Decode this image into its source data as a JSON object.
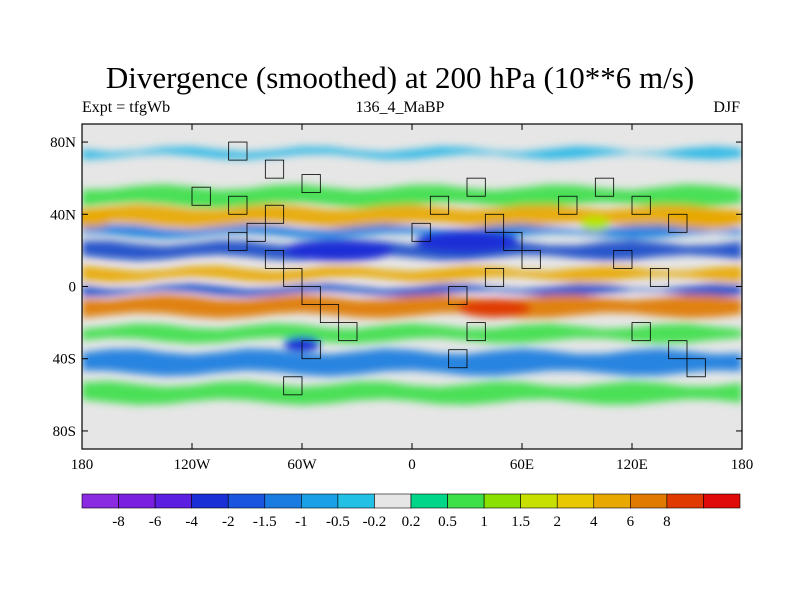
{
  "title": "Divergence (smoothed) at 200 hPa (10**6 m/s)",
  "expt_label": "Expt = tfgWb",
  "case_label": "136_4_MaBP",
  "season_label": "DJF",
  "map": {
    "projection": "cylindrical-equidistant",
    "lon_range": [
      -180,
      180
    ],
    "lat_range": [
      -90,
      90
    ],
    "lat_ticks": [
      {
        "value": 80,
        "label": "80N"
      },
      {
        "value": 40,
        "label": "40N"
      },
      {
        "value": 0,
        "label": "0"
      },
      {
        "value": -40,
        "label": "40S"
      },
      {
        "value": -80,
        "label": "80S"
      }
    ],
    "lon_ticks": [
      {
        "value": -180,
        "label": "180"
      },
      {
        "value": -120,
        "label": "120W"
      },
      {
        "value": -60,
        "label": "60W"
      },
      {
        "value": 0,
        "label": "0"
      },
      {
        "value": 60,
        "label": "60E"
      },
      {
        "value": 120,
        "label": "120E"
      },
      {
        "value": 180,
        "label": "180"
      }
    ],
    "bands": [
      {
        "lat": [
          72,
          76
        ],
        "color": "#23b6e6"
      },
      {
        "lat": [
          45,
          55
        ],
        "color": "#3ee04a"
      },
      {
        "lat": [
          34,
          44
        ],
        "color": "#e8a800"
      },
      {
        "lat": [
          28,
          33
        ],
        "color": "#1a7ce0"
      },
      {
        "lat": [
          16,
          24
        ],
        "color": "#1649c9"
      },
      {
        "lat": [
          4,
          10
        ],
        "color": "#e8a800"
      },
      {
        "lat": [
          -4,
          0
        ],
        "color": "#1649c9"
      },
      {
        "lat": [
          -16,
          -6
        ],
        "color": "#e07a00"
      },
      {
        "lat": [
          -30,
          -22
        ],
        "color": "#3ee04a"
      },
      {
        "lat": [
          -48,
          -36
        ],
        "color": "#1a7ce0"
      },
      {
        "lat": [
          -64,
          -54
        ],
        "color": "#3ee04a"
      }
    ],
    "blobs": [
      {
        "lon": -40,
        "lat": 20,
        "rlon": 30,
        "rlat": 6,
        "color": "#1a2fd6"
      },
      {
        "lon": 30,
        "lat": 25,
        "rlon": 28,
        "rlat": 6,
        "color": "#1a2fd6"
      },
      {
        "lon": 45,
        "lat": -12,
        "rlon": 20,
        "rlat": 5,
        "color": "#e03a00"
      },
      {
        "lon": 160,
        "lat": 37,
        "rlon": 22,
        "rlat": 5,
        "color": "#e8a800"
      },
      {
        "lon": -175,
        "lat": 38,
        "rlon": 12,
        "rlat": 5,
        "color": "#e8a800"
      },
      {
        "lon": -60,
        "lat": -32,
        "rlon": 10,
        "rlat": 4,
        "color": "#1a2fd6"
      },
      {
        "lon": 100,
        "lat": 35,
        "rlon": 8,
        "rlat": 4,
        "color": "#b4e600"
      }
    ],
    "coast_cells": [
      [
        -100,
        80
      ],
      [
        -80,
        70
      ],
      [
        -60,
        62
      ],
      [
        -120,
        55
      ],
      [
        -100,
        50
      ],
      [
        -80,
        45
      ],
      [
        -90,
        35
      ],
      [
        -100,
        30
      ],
      [
        -80,
        20
      ],
      [
        -70,
        10
      ],
      [
        -60,
        0
      ],
      [
        -50,
        -10
      ],
      [
        -40,
        -20
      ],
      [
        -60,
        -30
      ],
      [
        -70,
        -50
      ],
      [
        0,
        35
      ],
      [
        10,
        50
      ],
      [
        30,
        60
      ],
      [
        40,
        40
      ],
      [
        50,
        30
      ],
      [
        60,
        20
      ],
      [
        40,
        10
      ],
      [
        20,
        0
      ],
      [
        30,
        -20
      ],
      [
        20,
        -35
      ],
      [
        80,
        50
      ],
      [
        100,
        60
      ],
      [
        120,
        50
      ],
      [
        140,
        40
      ],
      [
        110,
        20
      ],
      [
        130,
        10
      ],
      [
        120,
        -20
      ],
      [
        140,
        -30
      ],
      [
        150,
        -40
      ]
    ]
  },
  "colorbar": {
    "colors": [
      "#8a2be2",
      "#7a1fe0",
      "#5a1fe0",
      "#1a2fd6",
      "#1a55e0",
      "#1a7ce0",
      "#1aa0e6",
      "#23c0e6",
      "#e6e6e6",
      "#00d68a",
      "#3ee04a",
      "#8ae000",
      "#c8e000",
      "#e8c800",
      "#e8a800",
      "#e07a00",
      "#e03a00",
      "#e00a0a"
    ],
    "labels": [
      "-8",
      "-6",
      "-4",
      "-2",
      "-1.5",
      "-1",
      "-0.5",
      "-0.2",
      "0.2",
      "0.5",
      "1",
      "1.5",
      "2",
      "4",
      "6",
      "8"
    ]
  }
}
